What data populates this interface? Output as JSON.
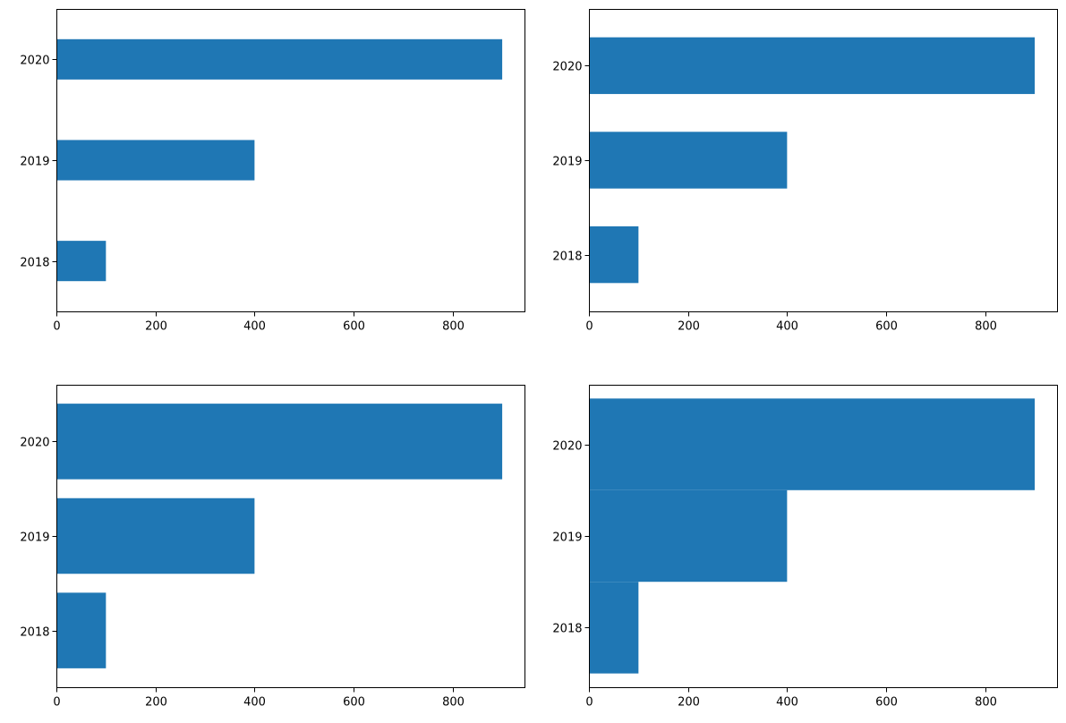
{
  "chart_data": [
    {
      "type": "bar",
      "orientation": "horizontal",
      "bar_height": 0.4,
      "categories": [
        "2018",
        "2019",
        "2020"
      ],
      "values": [
        100,
        400,
        900
      ],
      "xlim": [
        0,
        945
      ],
      "ylim": [
        -0.5,
        2.5
      ],
      "xticks": [
        "0",
        "200",
        "400",
        "600",
        "800"
      ],
      "color": "#1f77b4"
    },
    {
      "type": "bar",
      "orientation": "horizontal",
      "bar_height": 0.6,
      "categories": [
        "2018",
        "2019",
        "2020"
      ],
      "values": [
        100,
        400,
        900
      ],
      "xlim": [
        0,
        945
      ],
      "ylim": [
        -0.6,
        2.6
      ],
      "xticks": [
        "0",
        "200",
        "400",
        "600",
        "800"
      ],
      "color": "#1f77b4"
    },
    {
      "type": "bar",
      "orientation": "horizontal",
      "bar_height": 0.8,
      "categories": [
        "2018",
        "2019",
        "2020"
      ],
      "values": [
        100,
        400,
        900
      ],
      "xlim": [
        0,
        945
      ],
      "ylim": [
        -0.6,
        2.6
      ],
      "xticks": [
        "0",
        "200",
        "400",
        "600",
        "800"
      ],
      "color": "#1f77b4"
    },
    {
      "type": "bar",
      "orientation": "horizontal",
      "bar_height": 1.0,
      "categories": [
        "2018",
        "2019",
        "2020"
      ],
      "values": [
        100,
        400,
        900
      ],
      "xlim": [
        0,
        945
      ],
      "ylim": [
        -0.65,
        2.65
      ],
      "xticks": [
        "0",
        "200",
        "400",
        "600",
        "800"
      ],
      "color": "#1f77b4"
    }
  ]
}
